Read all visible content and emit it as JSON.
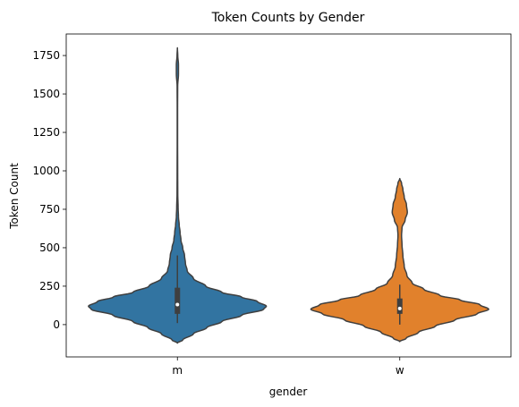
{
  "chart_data": {
    "type": "violin",
    "title": "Token Counts by Gender",
    "xlabel": "gender",
    "ylabel": "Token Count",
    "categories": [
      "m",
      "w"
    ],
    "ylim": [
      -210,
      1890
    ],
    "yticks": [
      0,
      250,
      500,
      750,
      1000,
      1250,
      1500,
      1750
    ],
    "ytick_labels": [
      "0",
      "250",
      "500",
      "750",
      "1000",
      "1250",
      "1500",
      "1750"
    ],
    "grid": false,
    "legend": "none",
    "series": [
      {
        "category": "m",
        "color": "#3274a1",
        "box": {
          "q1": 70,
          "median": 130,
          "q3": 240,
          "whisker_low": 10,
          "whisker_high": 450
        },
        "profile": [
          [
            -120,
            0.0
          ],
          [
            -100,
            0.06
          ],
          [
            -60,
            0.18
          ],
          [
            -20,
            0.33
          ],
          [
            20,
            0.5
          ],
          [
            60,
            0.72
          ],
          [
            100,
            0.97
          ],
          [
            120,
            1.0
          ],
          [
            150,
            0.9
          ],
          [
            180,
            0.72
          ],
          [
            210,
            0.5
          ],
          [
            250,
            0.32
          ],
          [
            300,
            0.18
          ],
          [
            350,
            0.11
          ],
          [
            400,
            0.09
          ],
          [
            450,
            0.08
          ],
          [
            500,
            0.06
          ],
          [
            550,
            0.04
          ],
          [
            600,
            0.03
          ],
          [
            650,
            0.02
          ],
          [
            700,
            0.012
          ],
          [
            760,
            0.008
          ],
          [
            850,
            0.004
          ],
          [
            1000,
            0.003
          ],
          [
            1200,
            0.002
          ],
          [
            1400,
            0.002
          ],
          [
            1550,
            0.003
          ],
          [
            1630,
            0.012
          ],
          [
            1690,
            0.012
          ],
          [
            1750,
            0.004
          ],
          [
            1800,
            0.0
          ]
        ]
      },
      {
        "category": "w",
        "color": "#e1812c",
        "box": {
          "q1": 70,
          "median": 105,
          "q3": 170,
          "whisker_low": 0,
          "whisker_high": 260
        },
        "profile": [
          [
            -110,
            0.0
          ],
          [
            -90,
            0.07
          ],
          [
            -50,
            0.21
          ],
          [
            -10,
            0.4
          ],
          [
            30,
            0.62
          ],
          [
            70,
            0.87
          ],
          [
            100,
            1.0
          ],
          [
            130,
            0.9
          ],
          [
            160,
            0.68
          ],
          [
            190,
            0.45
          ],
          [
            230,
            0.27
          ],
          [
            270,
            0.14
          ],
          [
            320,
            0.08
          ],
          [
            380,
            0.05
          ],
          [
            450,
            0.035
          ],
          [
            520,
            0.025
          ],
          [
            580,
            0.02
          ],
          [
            630,
            0.025
          ],
          [
            680,
            0.06
          ],
          [
            730,
            0.085
          ],
          [
            780,
            0.075
          ],
          [
            830,
            0.05
          ],
          [
            880,
            0.035
          ],
          [
            920,
            0.02
          ],
          [
            950,
            0.0
          ]
        ]
      }
    ]
  }
}
